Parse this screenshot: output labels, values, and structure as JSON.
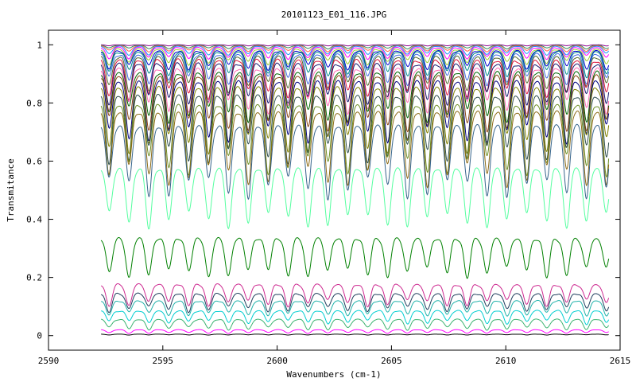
{
  "chart_data": {
    "type": "line",
    "title": "20101123_E01_116.JPG",
    "xlabel": "Wavenumbers (cm-1)",
    "ylabel": "Transmitance",
    "xlim": [
      2590,
      2615
    ],
    "ylim": [
      -0.05,
      1.05
    ],
    "x_range": [
      2592.3,
      2614.5
    ],
    "x_ticks": [
      2590,
      2595,
      2600,
      2605,
      2610,
      2615
    ],
    "x_tick_labels": [
      "2590",
      "2595",
      "2600",
      "2605",
      "2610",
      "2615"
    ],
    "y_ticks": [
      0,
      0.2,
      0.4,
      0.6,
      0.8,
      1
    ],
    "y_tick_labels": [
      "0",
      "0.2",
      "0.4",
      "0.6",
      "0.8",
      "1"
    ],
    "grid": false,
    "legend": "none",
    "absorption_line_spacing_cm1": 0.87,
    "series": [
      {
        "baseline": 1.0,
        "depth": 0.004,
        "color": "#8b008b"
      },
      {
        "baseline": 0.998,
        "depth": 0.012,
        "color": "#2e8b57"
      },
      {
        "baseline": 0.996,
        "depth": 0.02,
        "color": "#ff6347"
      },
      {
        "baseline": 0.994,
        "depth": 0.03,
        "color": "#1e90ff"
      },
      {
        "baseline": 0.99,
        "depth": 0.04,
        "color": "#ff00ff"
      },
      {
        "baseline": 0.985,
        "depth": 0.055,
        "color": "#9acd32"
      },
      {
        "baseline": 0.98,
        "depth": 0.07,
        "color": "#0000cd"
      },
      {
        "baseline": 0.975,
        "depth": 0.085,
        "color": "#008b8b"
      },
      {
        "baseline": 0.965,
        "depth": 0.1,
        "color": "#4169e1"
      },
      {
        "baseline": 0.955,
        "depth": 0.115,
        "color": "#556b2f"
      },
      {
        "baseline": 0.945,
        "depth": 0.13,
        "color": "#dc143c"
      },
      {
        "baseline": 0.935,
        "depth": 0.145,
        "color": "#191970"
      },
      {
        "baseline": 0.92,
        "depth": 0.16,
        "color": "#ff69b4"
      },
      {
        "baseline": 0.905,
        "depth": 0.175,
        "color": "#006400"
      },
      {
        "baseline": 0.89,
        "depth": 0.19,
        "color": "#8b4513"
      },
      {
        "baseline": 0.87,
        "depth": 0.205,
        "color": "#000080"
      },
      {
        "baseline": 0.85,
        "depth": 0.22,
        "color": "#808000"
      },
      {
        "baseline": 0.825,
        "depth": 0.235,
        "color": "#2f4f4f"
      },
      {
        "baseline": 0.795,
        "depth": 0.25,
        "color": "#6b8e23"
      },
      {
        "baseline": 0.77,
        "depth": 0.26,
        "color": "#8b6914"
      },
      {
        "baseline": 0.72,
        "depth": 0.25,
        "color": "#36648b"
      },
      {
        "baseline": 0.57,
        "depth": 0.2,
        "color": "#54ff9f"
      },
      {
        "baseline": 0.33,
        "depth": 0.13,
        "color": "#008000"
      },
      {
        "baseline": 0.175,
        "depth": 0.075,
        "color": "#cd2990"
      },
      {
        "baseline": 0.145,
        "depth": 0.065,
        "color": "#1f3d5c"
      },
      {
        "baseline": 0.12,
        "depth": 0.055,
        "color": "#20b2aa"
      },
      {
        "baseline": 0.085,
        "depth": 0.045,
        "color": "#00ced1"
      },
      {
        "baseline": 0.055,
        "depth": 0.035,
        "color": "#3cb371"
      },
      {
        "baseline": 0.02,
        "depth": 0.012,
        "color": "#ff00ff"
      },
      {
        "baseline": 0.005,
        "depth": 0.003,
        "color": "#000000"
      }
    ]
  }
}
